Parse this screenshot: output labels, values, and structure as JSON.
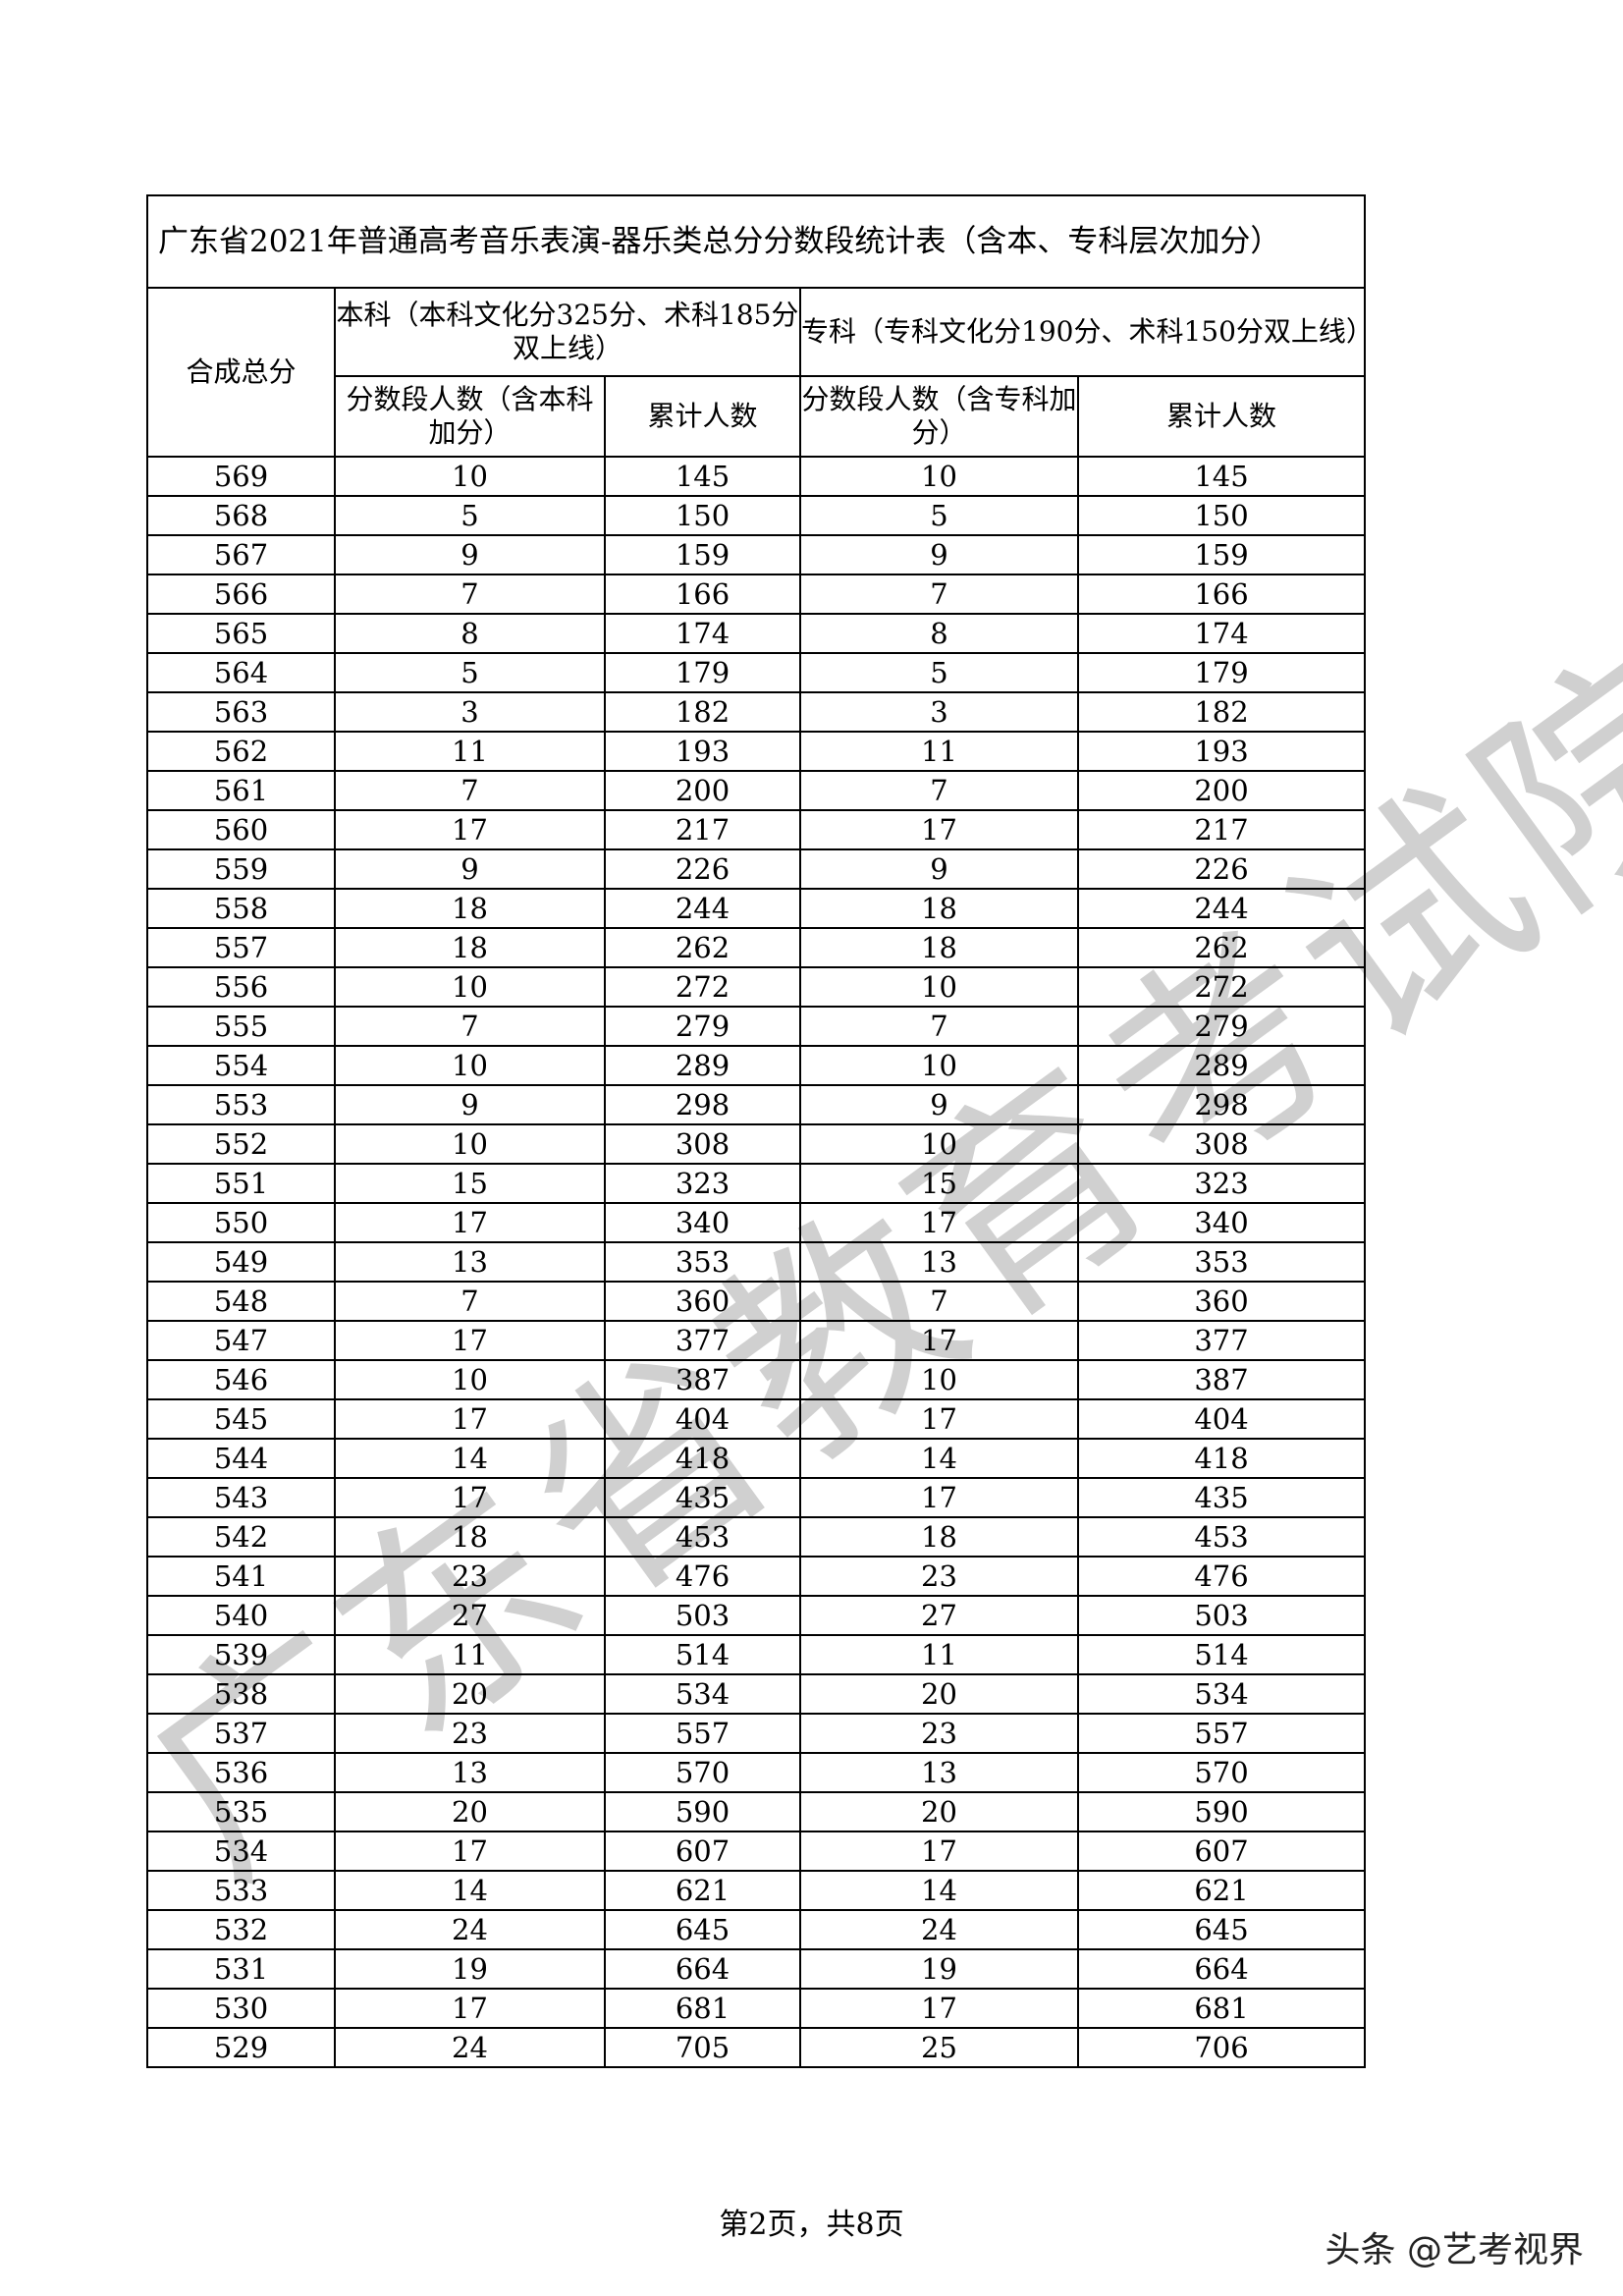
{
  "table": {
    "title": "广东省2021年普通高考音乐表演-器乐类总分分数段统计表（含本、专科层次加分）",
    "col_score": "合成总分",
    "group_benke": "本科（本科文化分325分、术科185分双上线）",
    "group_zhuanke": "专科（专科文化分190分、术科150分双上线）",
    "benke_count": "分数段人数（含本科加分）",
    "benke_cum": "累计人数",
    "zhuanke_count": "分数段人数（含专科加分）",
    "zhuanke_cum": "累计人数",
    "rows": [
      [
        569,
        10,
        145,
        10,
        145
      ],
      [
        568,
        5,
        150,
        5,
        150
      ],
      [
        567,
        9,
        159,
        9,
        159
      ],
      [
        566,
        7,
        166,
        7,
        166
      ],
      [
        565,
        8,
        174,
        8,
        174
      ],
      [
        564,
        5,
        179,
        5,
        179
      ],
      [
        563,
        3,
        182,
        3,
        182
      ],
      [
        562,
        11,
        193,
        11,
        193
      ],
      [
        561,
        7,
        200,
        7,
        200
      ],
      [
        560,
        17,
        217,
        17,
        217
      ],
      [
        559,
        9,
        226,
        9,
        226
      ],
      [
        558,
        18,
        244,
        18,
        244
      ],
      [
        557,
        18,
        262,
        18,
        262
      ],
      [
        556,
        10,
        272,
        10,
        272
      ],
      [
        555,
        7,
        279,
        7,
        279
      ],
      [
        554,
        10,
        289,
        10,
        289
      ],
      [
        553,
        9,
        298,
        9,
        298
      ],
      [
        552,
        10,
        308,
        10,
        308
      ],
      [
        551,
        15,
        323,
        15,
        323
      ],
      [
        550,
        17,
        340,
        17,
        340
      ],
      [
        549,
        13,
        353,
        13,
        353
      ],
      [
        548,
        7,
        360,
        7,
        360
      ],
      [
        547,
        17,
        377,
        17,
        377
      ],
      [
        546,
        10,
        387,
        10,
        387
      ],
      [
        545,
        17,
        404,
        17,
        404
      ],
      [
        544,
        14,
        418,
        14,
        418
      ],
      [
        543,
        17,
        435,
        17,
        435
      ],
      [
        542,
        18,
        453,
        18,
        453
      ],
      [
        541,
        23,
        476,
        23,
        476
      ],
      [
        540,
        27,
        503,
        27,
        503
      ],
      [
        539,
        11,
        514,
        11,
        514
      ],
      [
        538,
        20,
        534,
        20,
        534
      ],
      [
        537,
        23,
        557,
        23,
        557
      ],
      [
        536,
        13,
        570,
        13,
        570
      ],
      [
        535,
        20,
        590,
        20,
        590
      ],
      [
        534,
        17,
        607,
        17,
        607
      ],
      [
        533,
        14,
        621,
        14,
        621
      ],
      [
        532,
        24,
        645,
        24,
        645
      ],
      [
        531,
        19,
        664,
        19,
        664
      ],
      [
        530,
        17,
        681,
        17,
        681
      ],
      [
        529,
        24,
        705,
        25,
        706
      ]
    ]
  },
  "footer": {
    "page": "第2页，共8页"
  },
  "watermark": {
    "text": "广东省教育考试院",
    "brand": "头条 @艺考视界"
  }
}
